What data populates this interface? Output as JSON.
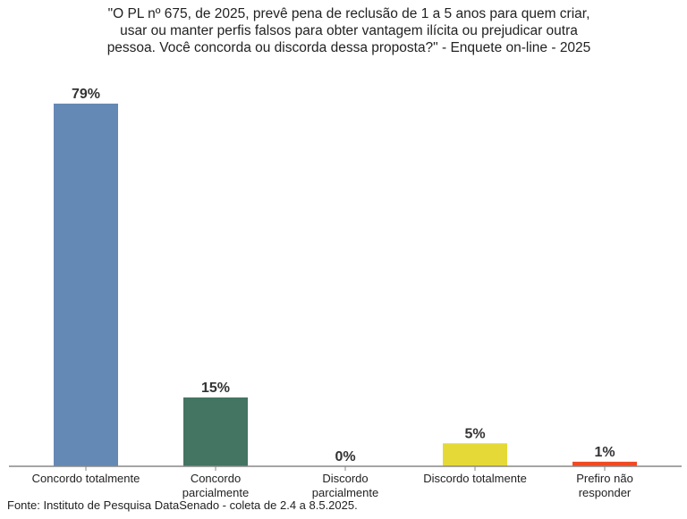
{
  "chart_data": {
    "type": "bar",
    "title_lines": [
      "\"O PL nº 675, de 2025, prevê pena de reclusão de 1 a 5 anos para quem criar,",
      "usar ou manter perfis falsos para obter vantagem ilícita ou prejudicar outra",
      "pessoa. Você concorda ou discorda dessa proposta?\" - Enquete on-line - 2025"
    ],
    "categories": [
      [
        "Concordo totalmente"
      ],
      [
        "Concordo",
        "parcialmente"
      ],
      [
        "Discordo",
        "parcialmente"
      ],
      [
        "Discordo totalmente"
      ],
      [
        "Prefiro não",
        "responder"
      ]
    ],
    "values": [
      79,
      15,
      0,
      5,
      1
    ],
    "data_labels": [
      "79%",
      "15%",
      "0%",
      "5%",
      "1%"
    ],
    "colors": [
      "#6589b5",
      "#437562",
      "#cccccc",
      "#e5d937",
      "#f04a23"
    ],
    "ylim": [
      0,
      79
    ],
    "xlabel": "",
    "ylabel": "",
    "grid": false,
    "legend": "none"
  },
  "source": "Fonte: Instituto de Pesquisa DataSenado - coleta de 2.4 a 8.5.2025."
}
